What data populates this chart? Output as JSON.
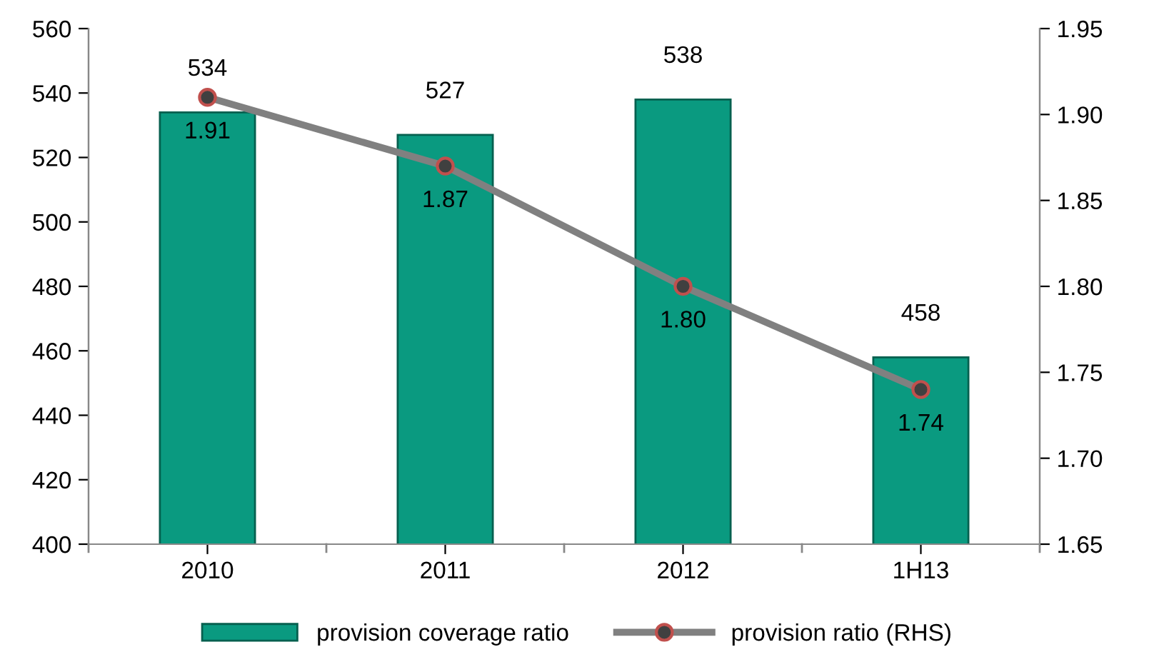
{
  "chart_data": {
    "type": "bar",
    "categories": [
      "2010",
      "2011",
      "2012",
      "1H13"
    ],
    "series": [
      {
        "name": "provision coverage ratio",
        "color": "#0a9a80",
        "values": [
          534,
          527,
          538,
          458
        ]
      },
      {
        "name": "provision ratio (RHS)",
        "type": "line",
        "axis": "y2",
        "color": "#808080",
        "values": [
          1.91,
          1.87,
          1.8,
          1.74
        ],
        "value_labels": [
          "1.91",
          "1.87",
          "1.80",
          "1.74"
        ]
      }
    ],
    "ylim": [
      400,
      560
    ],
    "yticks": [
      400,
      420,
      440,
      460,
      480,
      500,
      520,
      540,
      560
    ],
    "y2lim": [
      1.65,
      1.95
    ],
    "y2ticks": [
      {
        "value": 1.65,
        "label": "1.65"
      },
      {
        "value": 1.7,
        "label": "1.70"
      },
      {
        "value": 1.75,
        "label": "1.75"
      },
      {
        "value": 1.8,
        "label": "1.80"
      },
      {
        "value": 1.85,
        "label": "1.85"
      },
      {
        "value": 1.9,
        "label": "1.90"
      },
      {
        "value": 1.95,
        "label": "1.95"
      }
    ],
    "data_labels": true,
    "grid": false,
    "legend": "bottom",
    "marker": "circle",
    "line_style": "solid"
  }
}
